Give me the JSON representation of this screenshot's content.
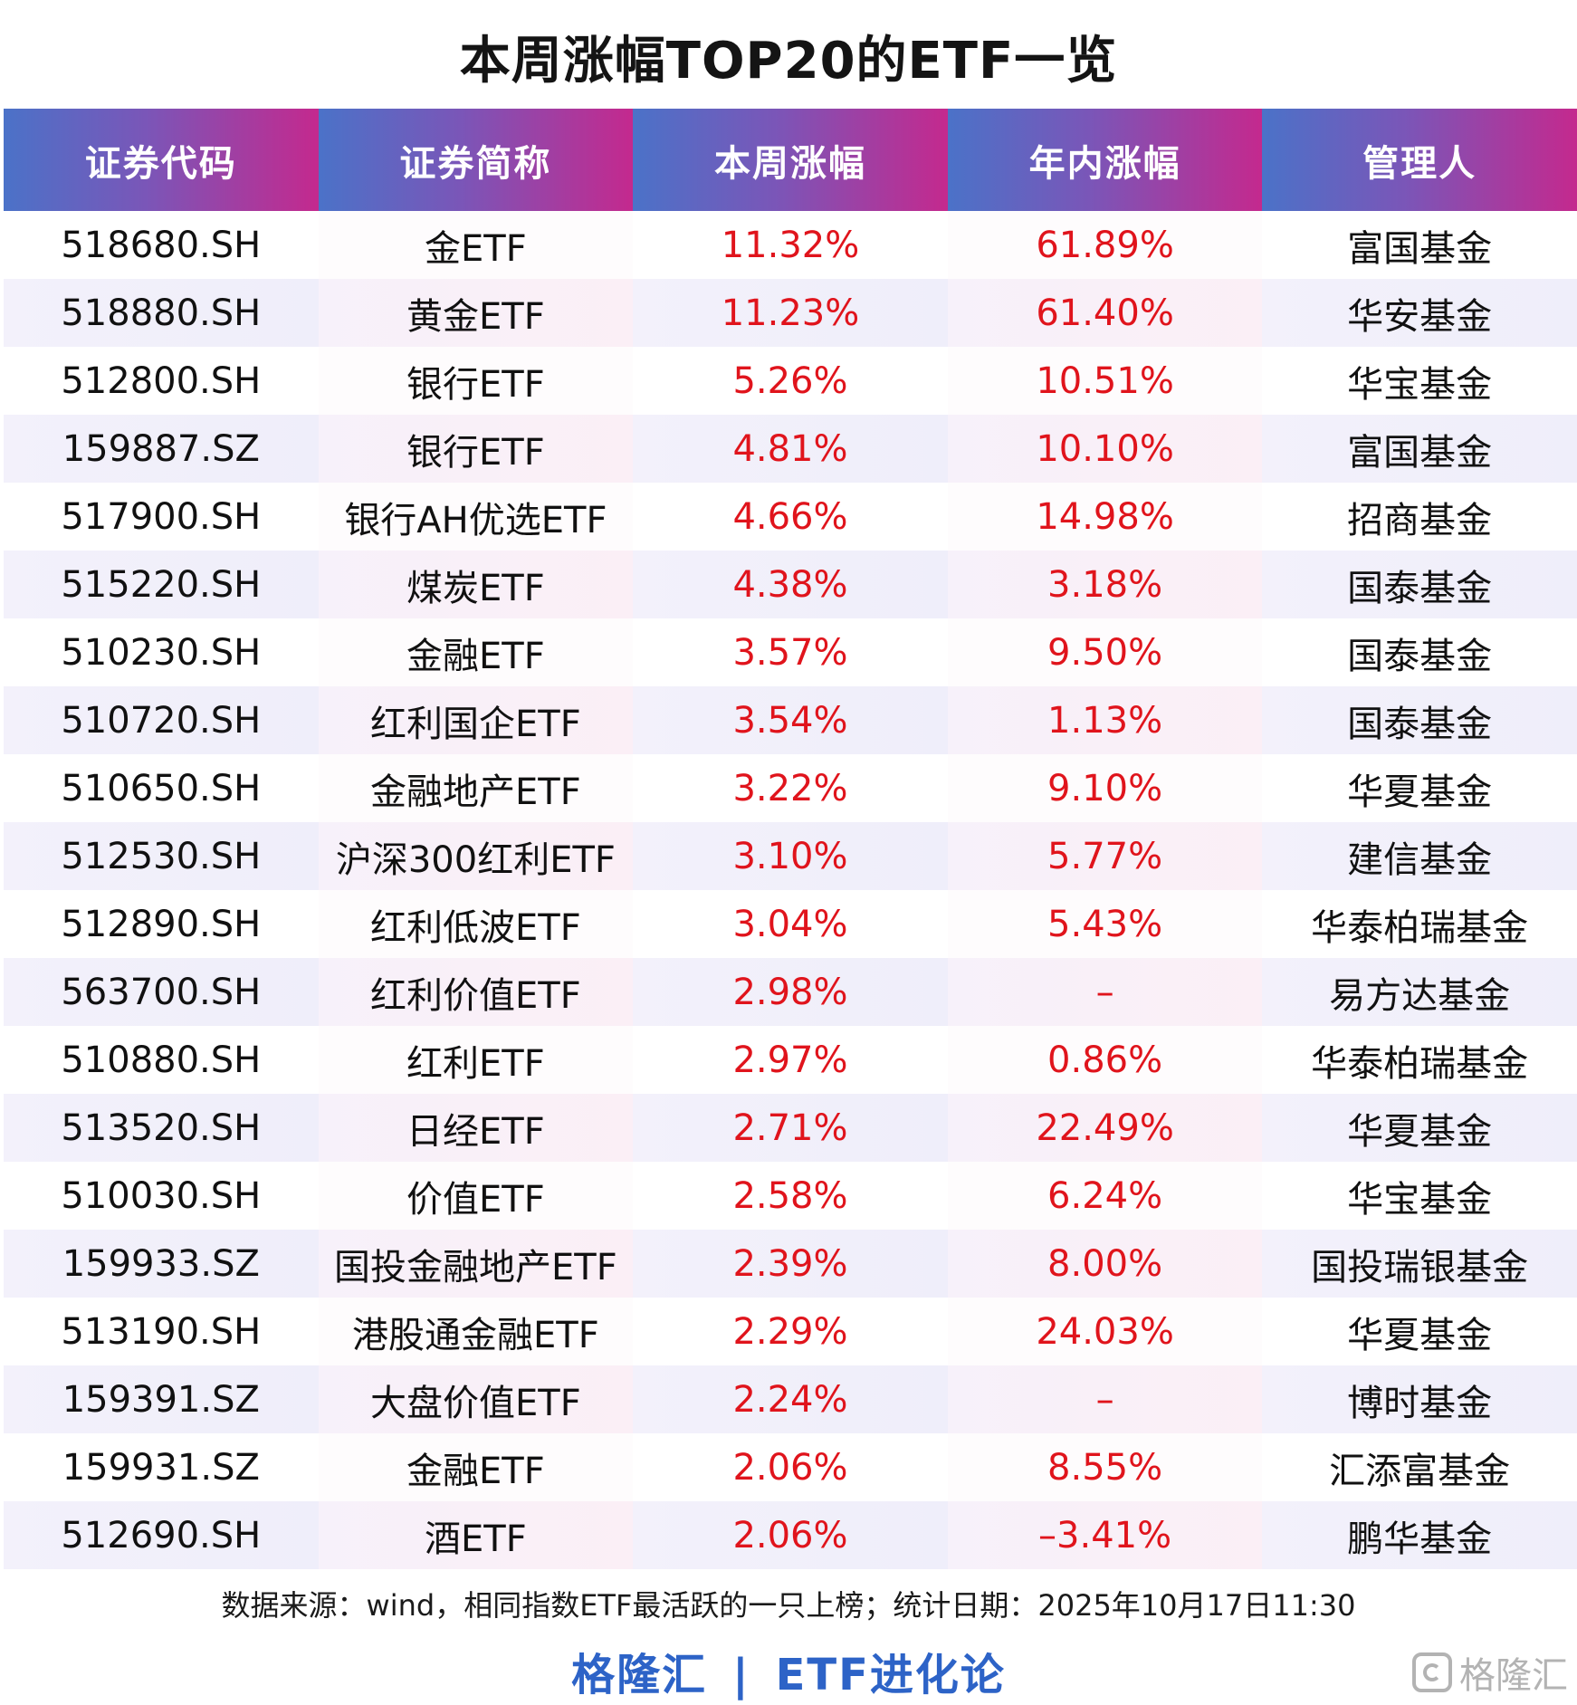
{
  "title": "本周涨幅TOP20的ETF一览",
  "columns": [
    "证券代码",
    "证券简称",
    "本周涨幅",
    "年内涨幅",
    "管理人"
  ],
  "rows": [
    [
      "518680.SH",
      "金ETF",
      "11.32%",
      "61.89%",
      "富国基金"
    ],
    [
      "518880.SH",
      "黄金ETF",
      "11.23%",
      "61.40%",
      "华安基金"
    ],
    [
      "512800.SH",
      "银行ETF",
      "5.26%",
      "10.51%",
      "华宝基金"
    ],
    [
      "159887.SZ",
      "银行ETF",
      "4.81%",
      "10.10%",
      "富国基金"
    ],
    [
      "517900.SH",
      "银行AH优选ETF",
      "4.66%",
      "14.98%",
      "招商基金"
    ],
    [
      "515220.SH",
      "煤炭ETF",
      "4.38%",
      "3.18%",
      "国泰基金"
    ],
    [
      "510230.SH",
      "金融ETF",
      "3.57%",
      "9.50%",
      "国泰基金"
    ],
    [
      "510720.SH",
      "红利国企ETF",
      "3.54%",
      "1.13%",
      "国泰基金"
    ],
    [
      "510650.SH",
      "金融地产ETF",
      "3.22%",
      "9.10%",
      "华夏基金"
    ],
    [
      "512530.SH",
      "沪深300红利ETF",
      "3.10%",
      "5.77%",
      "建信基金"
    ],
    [
      "512890.SH",
      "红利低波ETF",
      "3.04%",
      "5.43%",
      "华泰柏瑞基金"
    ],
    [
      "563700.SH",
      "红利价值ETF",
      "2.98%",
      "–",
      "易方达基金"
    ],
    [
      "510880.SH",
      "红利ETF",
      "2.97%",
      "0.86%",
      "华泰柏瑞基金"
    ],
    [
      "513520.SH",
      "日经ETF",
      "2.71%",
      "22.49%",
      "华夏基金"
    ],
    [
      "510030.SH",
      "价值ETF",
      "2.58%",
      "6.24%",
      "华宝基金"
    ],
    [
      "159933.SZ",
      "国投金融地产ETF",
      "2.39%",
      "8.00%",
      "国投瑞银基金"
    ],
    [
      "513190.SH",
      "港股通金融ETF",
      "2.29%",
      "24.03%",
      "华夏基金"
    ],
    [
      "159391.SZ",
      "大盘价值ETF",
      "2.24%",
      "–",
      "博时基金"
    ],
    [
      "159931.SZ",
      "金融ETF",
      "2.06%",
      "8.55%",
      "汇添富基金"
    ],
    [
      "512690.SH",
      "酒ETF",
      "2.06%",
      "–3.41%",
      "鹏华基金"
    ]
  ],
  "footer_note": "数据来源：wind，相同指数ETF最活跃的一只上榜；统计日期：2025年10月17日11:30",
  "brand": {
    "left": "格隆汇",
    "separator": "|",
    "right": "ETF进化论"
  },
  "watermark": {
    "text": "格隆汇",
    "icon": "gelonghui-logo-icon"
  },
  "colors": {
    "header_gradient_start": "#4b72c8",
    "header_gradient_end": "#c4298e",
    "value_red": "#e0141c",
    "brand_blue": "#2d63c7"
  }
}
